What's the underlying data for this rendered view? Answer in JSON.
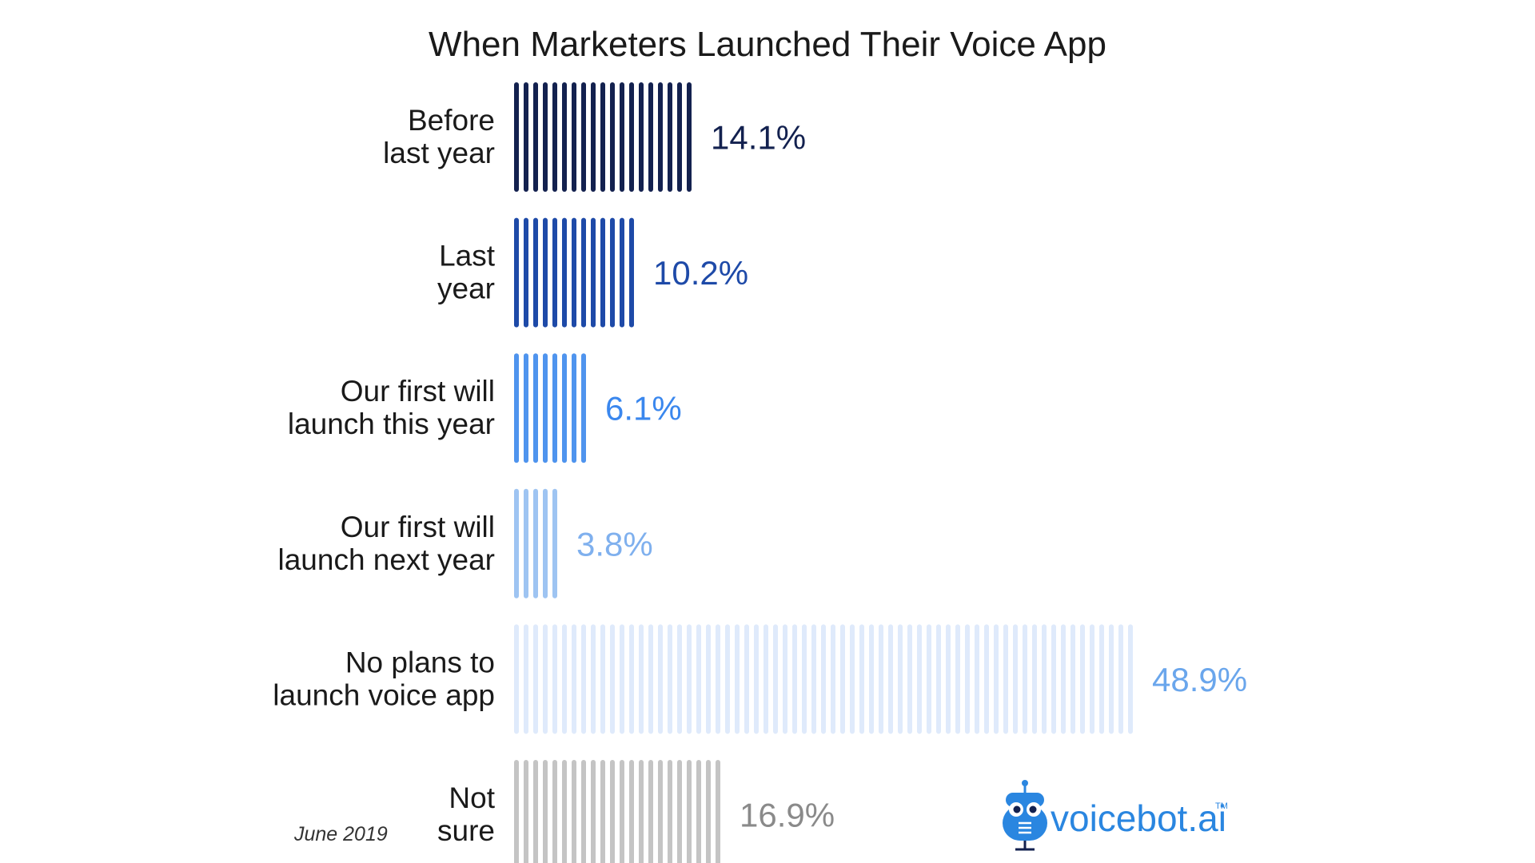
{
  "chart_data": {
    "type": "bar",
    "orientation": "horizontal",
    "title": "When Marketers Launched Their Voice App",
    "categories": [
      [
        "Before",
        "last year"
      ],
      [
        "Last",
        "year"
      ],
      [
        "Our first will",
        "launch this year"
      ],
      [
        "Our first will",
        "launch next year"
      ],
      [
        "No plans to",
        "launch voice app"
      ],
      [
        "Not",
        "sure"
      ]
    ],
    "values": [
      14.1,
      10.2,
      6.1,
      3.8,
      48.9,
      16.9
    ],
    "value_labels": [
      "14.1%",
      "10.2%",
      "6.1%",
      "3.8%",
      "48.9%",
      "16.9%"
    ],
    "bar_colors": [
      "#13214f",
      "#1e4aa8",
      "#4f94ee",
      "#9ec4f2",
      "#dfeafb",
      "#c4c4c4"
    ],
    "label_colors": [
      "#13214f",
      "#1e4aa8",
      "#3a87ee",
      "#7fb0ee",
      "#6aa6ec",
      "#8a8a8a"
    ],
    "xlim": [
      0,
      50
    ],
    "grid": false,
    "legend": "none"
  },
  "footer": {
    "date": "June 2019",
    "brand": "voicebot.ai",
    "brand_tm": "TM"
  },
  "brand_color": "#2a86e0",
  "icons": {
    "logo": "robot-microphone-icon"
  }
}
